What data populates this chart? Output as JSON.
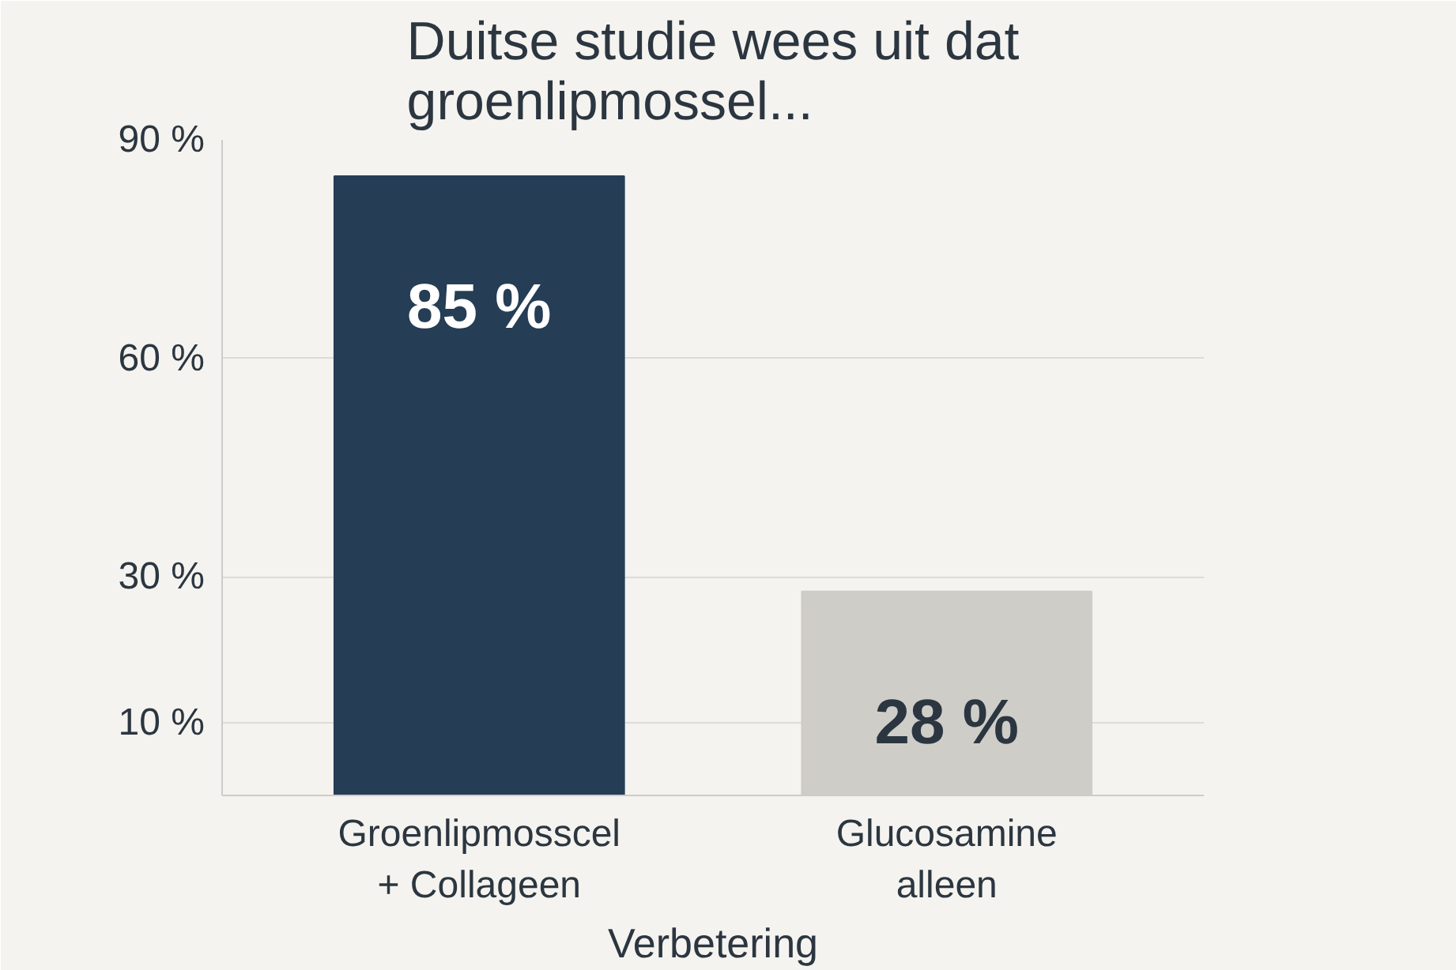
{
  "chart_data": {
    "type": "bar",
    "title": "Duitse studie wees uit dat\ngroenlipmossel...",
    "xlabel": "Verbetering",
    "categories": [
      "Groenlipmosscel\n+ Collageen",
      "Glucosamine\nalleen"
    ],
    "values": [
      85,
      28
    ],
    "colors": [
      "#253d55",
      "#cfcdc8"
    ],
    "value_labels": [
      "85 %",
      "28 %"
    ],
    "ylim": [
      0,
      90
    ],
    "yticks": [
      {
        "value": 10,
        "label": "10 %"
      },
      {
        "value": 30,
        "label": "30 %"
      },
      {
        "value": 60,
        "label": "60 %"
      },
      {
        "value": 90,
        "label": "90 %"
      }
    ],
    "grid": "y"
  }
}
